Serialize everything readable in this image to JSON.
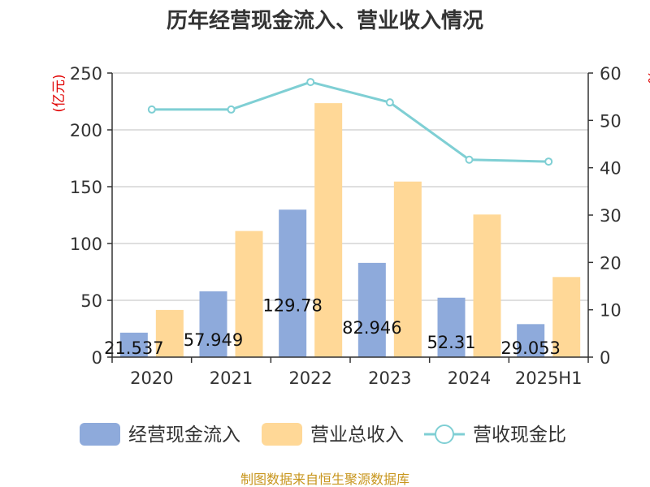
{
  "chart_data": {
    "type": "bar",
    "title": "历年经营现金流入、营业收入情况",
    "categories": [
      "2020",
      "2021",
      "2022",
      "2023",
      "2024",
      "2025H1"
    ],
    "left_axis": {
      "unit_label": "(亿元)",
      "ylim": [
        0,
        250
      ],
      "ticks": [
        "0",
        "50",
        "100",
        "150",
        "200",
        "250"
      ]
    },
    "right_axis": {
      "unit_label": "%",
      "ylim": [
        0,
        60
      ],
      "ticks": [
        "0",
        "10",
        "20",
        "30",
        "40",
        "50",
        "60"
      ]
    },
    "series": [
      {
        "name": "经营现金流入",
        "kind": "bar",
        "axis": "left",
        "color": "#8eaadb",
        "values": [
          21.537,
          57.949,
          129.78,
          82.946,
          52.31,
          29.053
        ],
        "data_labels": [
          "21.537",
          "57.949",
          "129.78",
          "82.946",
          "52.31",
          "29.053"
        ]
      },
      {
        "name": "营业总收入",
        "kind": "bar",
        "axis": "left",
        "color": "#ffd897",
        "values": [
          41.5,
          111,
          223.5,
          154.5,
          125.5,
          70.5
        ]
      },
      {
        "name": "营收现金比",
        "kind": "line",
        "axis": "right",
        "color": "#7fcfd4",
        "values": [
          52.3,
          52.3,
          58.1,
          53.8,
          41.7,
          41.3
        ]
      }
    ],
    "grid": true,
    "legend": "bottom"
  },
  "source": "制图数据来自恒生聚源数据库"
}
